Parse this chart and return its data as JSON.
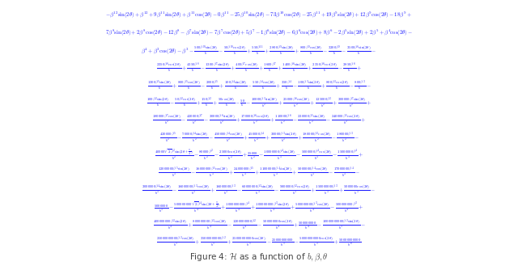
{
  "background_color": "#ffffff",
  "formula_color": "#1a1aff",
  "caption_color": "#444444",
  "figsize": [
    6.4,
    3.34
  ],
  "dpi": 100,
  "lines": [
    "$-\\beta^{12}\\sin(2\\theta) + \\beta^{12} + 9\\beta^{11}\\sin(2\\theta) + \\beta^{11}\\cos(2\\theta) - 0\\beta^{11} - 25\\beta^{10}\\sin(2\\theta) - 73\\beta^{10}\\cos(2\\theta) - 25\\beta^{11} + 19\\beta^9\\sin(2\\theta) + 12\\beta^9\\cos(2\\theta) - 18\\beta^9 +$",
    "$7\\beta^8\\sin(2\\theta) + 2\\beta^8\\cos(2\\theta) - 12\\beta^8 - \\beta^7\\sin(2\\theta) - 7\\beta^7\\cos(2\\theta) + 5\\beta^7 - 1\\beta^6\\sin(2\\theta) - 6\\beta^6\\cos(2\\theta) + 8\\beta^6 - 2\\beta^5\\sin(2\\theta) + 2\\beta^5 + \\beta^4\\cos(2\\theta) -$",
    "$\\beta^4 + \\beta^3\\cos(2\\theta) - \\beta^3 - \\frac{500\\beta^{10}\\sin(2\\theta)}{b} - \\frac{50\\beta^{10}\\cos(2\\theta)}{b} + \\frac{550\\beta^{11}}{b} + \\frac{2800\\beta^9\\sin(2\\theta)}{b} + \\frac{800\\beta^9\\cos(2\\theta)}{b} - \\frac{3200\\beta^9}{b} - \\frac{3500\\beta^8\\sin(2\\theta)}{b} -$",
    "$\\frac{2350\\beta^8\\cos(2\\theta)}{b} + \\frac{4350\\beta^8}{b} - \\frac{1300\\beta^7\\sin(2\\theta)}{b} + \\frac{400\\beta^7\\cos(2\\theta)}{b} + \\frac{1600\\beta^7}{b} + \\frac{1400\\beta^6\\sin(2\\theta)}{b} + \\frac{2350\\beta^6\\cos(2\\theta)}{b} - \\frac{2850\\beta^6}{b} +$",
    "$\\frac{1300\\beta^5\\sin(2\\theta)}{b} + \\frac{800\\beta^5\\cos(2\\theta)}{b} - \\frac{2000\\beta^5}{b} + \\frac{100\\beta^4\\sin(2\\theta)}{b} - \\frac{550\\beta^4\\cos(2\\theta)}{b} + \\frac{350\\beta^4}{b} - \\frac{100\\beta^3\\sin(2\\theta)}{b} + \\frac{800\\beta^3\\cos(2\\theta)}{b} - \\frac{800\\beta^3}{b} -$",
    "$\\frac{100\\beta^2\\sin(2\\theta)}{b} - \\frac{50\\beta^2\\cos(2\\theta)}{b} + \\frac{150\\beta^2}{b} + \\frac{50\\cos(2\\theta)}{b} - \\frac{50}{b} - \\frac{10000\\beta^3\\sin(2\\theta)}{b^2} + \\frac{25000\\beta^6\\cos(2\\theta)}{b^2} + \\frac{125000\\beta^3}{b^2} + \\frac{300000\\beta^7\\sin(2\\theta)}{b^2} +$",
    "$\\frac{180000\\beta^7\\cos(2\\theta)}{b^2} - \\frac{420000\\beta^7}{b^2} - \\frac{30000\\beta^6\\sin(2\\theta)}{b^2} + \\frac{170000\\beta^6\\cos(2\\theta)}{b^2} + \\frac{110000\\beta^6}{b^2} - \\frac{230000\\beta^5\\sin(2\\theta)}{b^2} - \\frac{240000\\beta^5\\cos(2\\theta)}{b^2} +$",
    "$\\frac{420000\\beta^5}{b^2} - \\frac{70000\\beta^4\\sin(2\\theta)}{b^2} - \\frac{450000\\beta^4\\cos(2\\theta)}{b^2} + \\frac{450000\\beta^4}{b^2} + \\frac{30000\\beta^3\\sin(2\\theta)}{b^2} + \\frac{180000\\beta^3\\cos(2\\theta)}{b^2} - \\frac{180000\\beta^3}{b^2} -$",
    "$\\frac{40000\\sqrt{2}\\beta^2\\sin(2\\theta + \\frac{\\pi}{4})}{b^2} - \\frac{80000\\beta^2}{b^2} - \\frac{25000\\cos(2\\theta)}{b^2} + \\frac{25000}{b^2} - \\frac{10000000\\beta^4\\sin(2\\theta)}{b^3} - \\frac{5000000\\beta^4\\cos(2\\theta)}{b^3} - \\frac{15000000\\beta^4}{b^3} +$",
    "$\\frac{12000000\\beta^5\\sin(2\\theta)}{b^3} - \\frac{16000000\\beta^5\\cos(2\\theta)}{b^3} + \\frac{24000000\\beta^5}{b^3} + \\frac{11000000\\beta^4\\sin(2\\theta)}{b^3} + \\frac{5000000\\beta^4\\cos(2\\theta)}{b^3} - \\frac{17000000\\beta^4}{b^3} -$",
    "$\\frac{3000000\\beta^4\\sin(2\\theta)}{b^3} - \\frac{16000000\\beta^3\\cos(2\\theta)}{b^3} + \\frac{16000000\\beta^3}{b^3} - \\frac{60000000\\beta^3\\sin(2\\theta)}{b^3} - \\frac{9000000\\beta^2\\cos(2\\theta)}{b^3} + \\frac{150000000\\beta^3}{b^3} + \\frac{5000000\\cos(2\\theta)}{b^3} -$",
    "$\\frac{5000000}{b^3} - \\frac{500000000\\sqrt{2}\\beta^4\\sin(2\\theta + \\frac{\\pi}{4})}{b^4} + \\frac{1000000000\\beta^4}{b^4} + \\frac{100000000\\beta^3\\sin(2\\theta)}{b^4} + \\frac{500000000\\beta^3\\cos(2\\theta)}{b^4} - \\frac{500000000\\beta^3}{b^4} +$",
    "$\\frac{400000000\\beta^2\\sin(2\\theta)}{b^4} + \\frac{800000000\\beta^2\\cos(2\\theta)}{b^4} - \\frac{1200000000\\beta^2}{b^4} - \\frac{500000000\\cos(2\\theta)}{b^4} + \\frac{500000000}{b^4} - \\frac{10000000000\\beta^2\\sin(2\\theta)}{b^5} -$",
    "$\\frac{25000000000\\beta^2\\cos(2\\theta)}{b^5} + \\frac{35000000000\\beta^2}{b^5} + \\frac{25000000000\\cos(2\\theta)}{b^5} - \\frac{25000000000}{b^5} - \\frac{50000000000\\cos(2\\theta)}{b^5} + \\frac{50000000000}{b^6}$"
  ],
  "caption": "Figure 4: $\\mathcal{H}$ as a function of $b, \\beta, \\theta$"
}
